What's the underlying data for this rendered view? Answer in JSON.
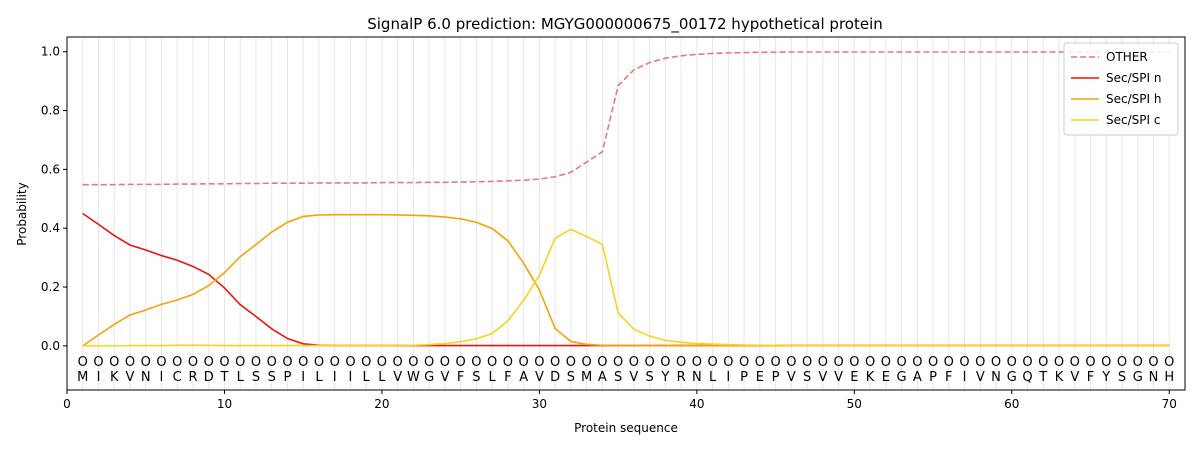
{
  "chart_data": {
    "type": "line",
    "title": "SignalP 6.0 prediction: MGYG000000675_00172 hypothetical protein",
    "xlabel": "Protein sequence",
    "ylabel": "Probability",
    "xlim": [
      0,
      71
    ],
    "ylim": [
      -0.15,
      1.05
    ],
    "xticks": [
      0,
      10,
      20,
      30,
      40,
      50,
      60,
      70
    ],
    "yticks": [
      0.0,
      0.2,
      0.4,
      0.6,
      0.8,
      1.0
    ],
    "x": [
      1,
      2,
      3,
      4,
      5,
      6,
      7,
      8,
      9,
      10,
      11,
      12,
      13,
      14,
      15,
      16,
      17,
      18,
      19,
      20,
      21,
      22,
      23,
      24,
      25,
      26,
      27,
      28,
      29,
      30,
      31,
      32,
      33,
      34,
      35,
      36,
      37,
      38,
      39,
      40,
      41,
      42,
      43,
      44,
      45,
      46,
      47,
      48,
      49,
      50,
      51,
      52,
      53,
      54,
      55,
      56,
      57,
      58,
      59,
      60,
      61,
      62,
      63,
      64,
      65,
      66,
      67,
      68,
      69,
      70
    ],
    "sequence": [
      "M",
      "I",
      "K",
      "V",
      "N",
      "I",
      "C",
      "R",
      "D",
      "T",
      "L",
      "S",
      "S",
      "P",
      "I",
      "L",
      "I",
      "I",
      "L",
      "L",
      "V",
      "W",
      "G",
      "V",
      "F",
      "S",
      "L",
      "F",
      "A",
      "V",
      "D",
      "S",
      "M",
      "A",
      "S",
      "V",
      "S",
      "Y",
      "R",
      "N",
      "L",
      "I",
      "P",
      "E",
      "P",
      "V",
      "S",
      "V",
      "V",
      "E",
      "K",
      "E",
      "G",
      "A",
      "P",
      "F",
      "I",
      "V",
      "N",
      "G",
      "Q",
      "T",
      "K",
      "V",
      "F",
      "Y",
      "S",
      "G",
      "N",
      "H"
    ],
    "state_marker": "O",
    "legend_position": "upper-right",
    "series": [
      {
        "name": "OTHER",
        "color": "#e8797a",
        "dash": true,
        "values": [
          0.548,
          0.548,
          0.548,
          0.549,
          0.549,
          0.549,
          0.55,
          0.55,
          0.551,
          0.551,
          0.552,
          0.552,
          0.553,
          0.553,
          0.553,
          0.554,
          0.554,
          0.554,
          0.554,
          0.555,
          0.555,
          0.555,
          0.556,
          0.556,
          0.557,
          0.558,
          0.559,
          0.561,
          0.563,
          0.567,
          0.575,
          0.59,
          0.625,
          0.66,
          0.885,
          0.938,
          0.963,
          0.978,
          0.986,
          0.991,
          0.994,
          0.996,
          0.997,
          0.998,
          0.998,
          0.999,
          0.999,
          0.999,
          0.999,
          0.999,
          0.999,
          0.999,
          0.999,
          0.999,
          0.999,
          0.999,
          0.999,
          0.999,
          0.999,
          0.999,
          0.999,
          0.999,
          0.999,
          0.999,
          0.999,
          0.999,
          0.999,
          0.999,
          0.999,
          0.999
        ]
      },
      {
        "name": "Sec/SPI n",
        "color": "#e8160c",
        "dash": false,
        "values": [
          0.45,
          0.413,
          0.375,
          0.343,
          0.326,
          0.307,
          0.291,
          0.27,
          0.243,
          0.197,
          0.14,
          0.1,
          0.058,
          0.025,
          0.007,
          0.002,
          0.001,
          0.001,
          0.001,
          0.001,
          0.001,
          0.001,
          0.001,
          0.001,
          0.001,
          0.001,
          0.001,
          0.001,
          0.001,
          0.001,
          0.001,
          0.001,
          0.001,
          0.001,
          0.001,
          0.001,
          0.001,
          0.001,
          0.001,
          0.001,
          0.001,
          0.001,
          0.001,
          0.001,
          0.001,
          0.001,
          0.001,
          0.001,
          0.001,
          0.001,
          0.001,
          0.001,
          0.001,
          0.001,
          0.001,
          0.001,
          0.001,
          0.001,
          0.001,
          0.001,
          0.001,
          0.001,
          0.001,
          0.001,
          0.001,
          0.001,
          0.001,
          0.001,
          0.001,
          0.001
        ]
      },
      {
        "name": "Sec/SPI h",
        "color": "#f5a30a",
        "dash": false,
        "values": [
          0.0,
          0.037,
          0.073,
          0.105,
          0.122,
          0.141,
          0.156,
          0.175,
          0.205,
          0.249,
          0.303,
          0.344,
          0.387,
          0.42,
          0.44,
          0.445,
          0.446,
          0.446,
          0.446,
          0.446,
          0.445,
          0.444,
          0.442,
          0.438,
          0.432,
          0.42,
          0.399,
          0.357,
          0.281,
          0.19,
          0.059,
          0.015,
          0.005,
          0.002,
          0.001,
          0.001,
          0.001,
          0.001,
          0.001,
          0.001,
          0.001,
          0.001,
          0.001,
          0.001,
          0.001,
          0.001,
          0.001,
          0.001,
          0.001,
          0.001,
          0.001,
          0.001,
          0.001,
          0.001,
          0.001,
          0.001,
          0.001,
          0.001,
          0.001,
          0.001,
          0.001,
          0.001,
          0.001,
          0.001,
          0.001,
          0.001,
          0.001,
          0.001,
          0.001,
          0.001
        ]
      },
      {
        "name": "Sec/SPI c",
        "color": "#fad21e",
        "dash": false,
        "values": [
          0.0,
          0.0,
          0.0,
          0.001,
          0.001,
          0.001,
          0.002,
          0.002,
          0.002,
          0.001,
          0.001,
          0.001,
          0.001,
          0.001,
          0.001,
          0.001,
          0.001,
          0.001,
          0.001,
          0.001,
          0.001,
          0.002,
          0.004,
          0.008,
          0.014,
          0.024,
          0.042,
          0.085,
          0.155,
          0.24,
          0.366,
          0.396,
          0.372,
          0.345,
          0.112,
          0.057,
          0.033,
          0.019,
          0.012,
          0.008,
          0.006,
          0.004,
          0.003,
          0.002,
          0.002,
          0.001,
          0.001,
          0.001,
          0.001,
          0.001,
          0.001,
          0.001,
          0.001,
          0.001,
          0.001,
          0.001,
          0.001,
          0.001,
          0.001,
          0.001,
          0.001,
          0.001,
          0.001,
          0.001,
          0.001,
          0.001,
          0.001,
          0.001,
          0.001,
          0.001
        ]
      }
    ]
  }
}
